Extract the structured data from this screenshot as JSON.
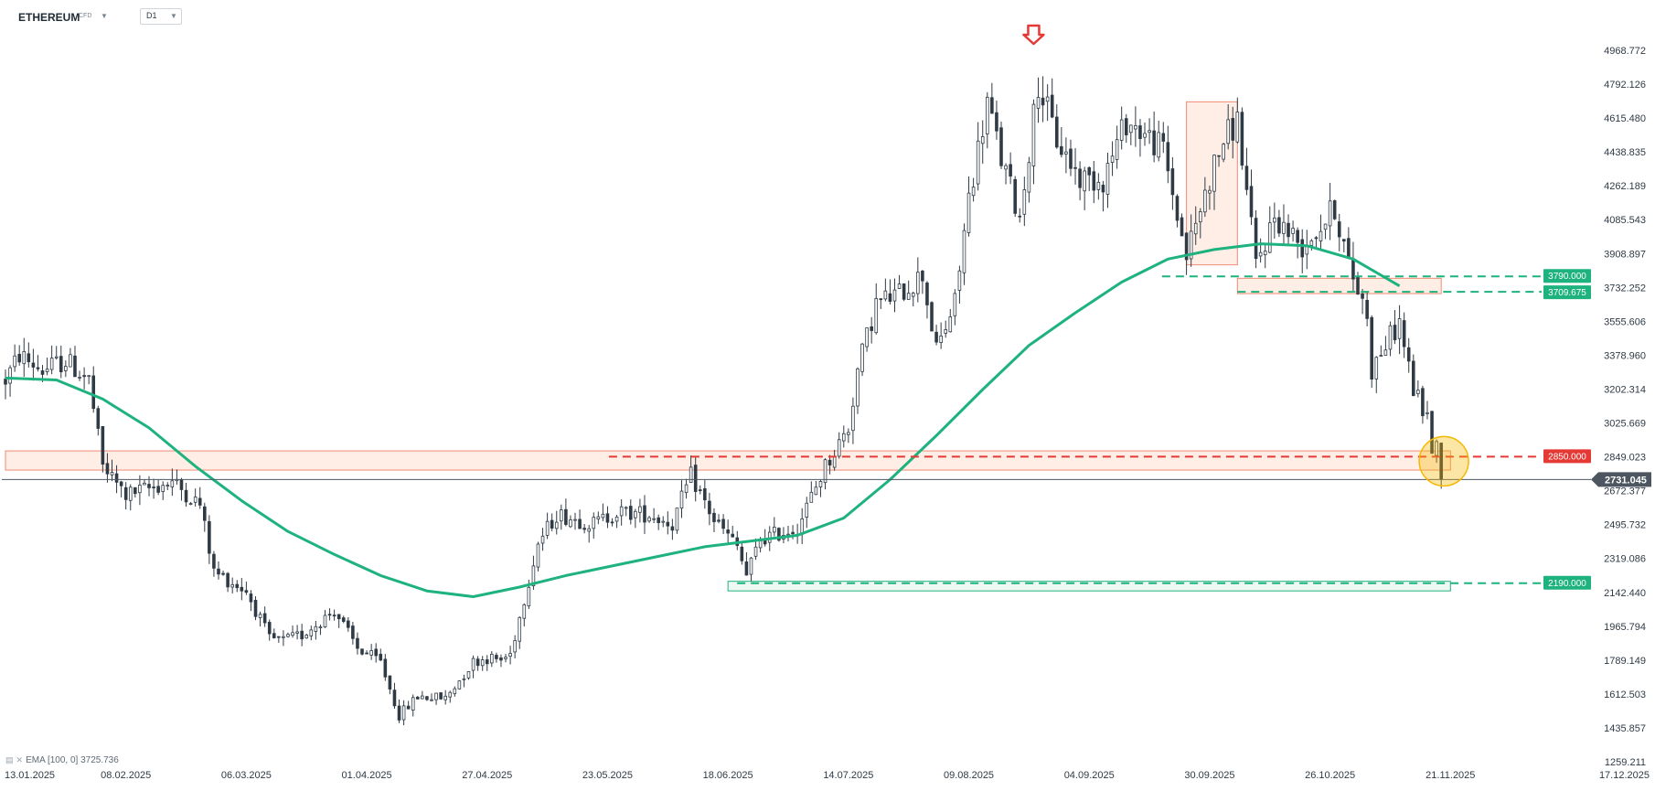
{
  "header": {
    "symbol": "ETHEREUM",
    "symbol_type": "CFD",
    "timeframe": "D1",
    "caret_icon": "caret-down-icon"
  },
  "indicator_legend": {
    "text": "EMA [100, 0] 3725.736",
    "icons": [
      "indicator-chart-icon",
      "close-icon"
    ]
  },
  "colors": {
    "up_candle": "#ffffff",
    "down_candle": "#2f3a45",
    "candle_outline": "#2f3a45",
    "ema": "#1db27e",
    "resistance": "#e53935",
    "support": "#1db27e",
    "zone_fill": "#fde8dc",
    "zone_border": "#f08a74",
    "current_price": "#4d5660",
    "highlight_circle": "#f5b800",
    "arrow": "#e53935"
  },
  "chart_data": {
    "type": "candlestick",
    "symbol": "ETHEREUM",
    "timeframe": "D1",
    "y_ticks": [
      "4968.772",
      "4792.126",
      "4615.480",
      "4438.835",
      "4262.189",
      "4085.543",
      "3908.897",
      "3732.252",
      "3555.606",
      "3378.960",
      "3202.314",
      "3025.669",
      "2849.023",
      "2672.377",
      "2495.732",
      "2319.086",
      "2142.440",
      "1965.794",
      "1789.149",
      "1612.503",
      "1435.857",
      "1259.211"
    ],
    "ylim": [
      1259.211,
      4968.772
    ],
    "x_ticks": [
      "13.01.2025",
      "08.02.2025",
      "06.03.2025",
      "01.04.2025",
      "27.04.2025",
      "23.05.2025",
      "18.06.2025",
      "14.07.2025",
      "09.08.2025",
      "04.09.2025",
      "30.09.2025",
      "26.10.2025",
      "21.11.2025",
      "17.12.2025"
    ],
    "price_anchors": [
      [
        "13.01.2025",
        3250
      ],
      [
        "16.01.2025",
        3380
      ],
      [
        "21.01.2025",
        3300
      ],
      [
        "26.01.2025",
        3350
      ],
      [
        "31.01.2025",
        3250
      ],
      [
        "03.02.2025",
        2800
      ],
      [
        "08.02.2025",
        2650
      ],
      [
        "18.02.2025",
        2720
      ],
      [
        "24.02.2025",
        2600
      ],
      [
        "27.02.2025",
        2250
      ],
      [
        "06.03.2025",
        2150
      ],
      [
        "11.03.2025",
        1900
      ],
      [
        "14.03.2025",
        1890
      ],
      [
        "18.03.2025",
        1920
      ],
      [
        "25.03.2025",
        2050
      ],
      [
        "30.03.2025",
        1850
      ],
      [
        "04.04.2025",
        1780
      ],
      [
        "08.04.2025",
        1500
      ],
      [
        "12.04.2025",
        1600
      ],
      [
        "18.04.2025",
        1590
      ],
      [
        "24.04.2025",
        1780
      ],
      [
        "27.04.2025",
        1800
      ],
      [
        "30.04.2025",
        1790
      ],
      [
        "02.05.2025",
        1820
      ],
      [
        "08.05.2025",
        2400
      ],
      [
        "12.05.2025",
        2550
      ],
      [
        "20.05.2025",
        2500
      ],
      [
        "25.05.2025",
        2560
      ],
      [
        "01.06.2025",
        2550
      ],
      [
        "06.06.2025",
        2500
      ],
      [
        "10.06.2025",
        2750
      ],
      [
        "15.06.2025",
        2520
      ],
      [
        "20.06.2025",
        2380
      ],
      [
        "22.06.2025",
        2230
      ],
      [
        "25.06.2025",
        2420
      ],
      [
        "03.07.2025",
        2480
      ],
      [
        "09.07.2025",
        2800
      ],
      [
        "14.07.2025",
        3000
      ],
      [
        "16.07.2025",
        3300
      ],
      [
        "20.07.2025",
        3650
      ],
      [
        "25.07.2025",
        3700
      ],
      [
        "30.07.2025",
        3800
      ],
      [
        "02.08.2025",
        3400
      ],
      [
        "06.08.2025",
        3650
      ],
      [
        "09.08.2025",
        4200
      ],
      [
        "13.08.2025",
        4700
      ],
      [
        "16.08.2025",
        4400
      ],
      [
        "20.08.2025",
        4100
      ],
      [
        "24.08.2025",
        4800
      ],
      [
        "28.08.2025",
        4500
      ],
      [
        "02.09.2025",
        4300
      ],
      [
        "07.09.2025",
        4300
      ],
      [
        "12.09.2025",
        4600
      ],
      [
        "15.09.2025",
        4550
      ],
      [
        "20.09.2025",
        4450
      ],
      [
        "24.09.2025",
        4000
      ],
      [
        "25.09.2025",
        3900
      ],
      [
        "30.09.2025",
        4300
      ],
      [
        "03.10.2025",
        4500
      ],
      [
        "06.10.2025",
        4600
      ],
      [
        "10.10.2025",
        3850
      ],
      [
        "14.10.2025",
        4100
      ],
      [
        "20.10.2025",
        3950
      ],
      [
        "24.10.2025",
        4050
      ],
      [
        "27.10.2025",
        4150
      ],
      [
        "30.10.2025",
        3850
      ],
      [
        "03.11.2025",
        3600
      ],
      [
        "04.11.2025",
        3300
      ],
      [
        "06.11.2025",
        3400
      ],
      [
        "10.11.2025",
        3550
      ],
      [
        "13.11.2025",
        3200
      ],
      [
        "16.11.2025",
        3050
      ],
      [
        "17.11.2025",
        2900
      ],
      [
        "18.11.2025",
        2900
      ],
      [
        "19.11.2025",
        2731
      ]
    ],
    "ema": {
      "name": "EMA [100, 0]",
      "last_value": 3725.736,
      "points": [
        [
          "13.01.2025",
          3260
        ],
        [
          "24.01.2025",
          3250
        ],
        [
          "03.02.2025",
          3150
        ],
        [
          "13.02.2025",
          3000
        ],
        [
          "23.02.2025",
          2800
        ],
        [
          "05.03.2025",
          2620
        ],
        [
          "15.03.2025",
          2460
        ],
        [
          "25.03.2025",
          2340
        ],
        [
          "04.04.2025",
          2230
        ],
        [
          "14.04.2025",
          2150
        ],
        [
          "24.04.2025",
          2120
        ],
        [
          "04.05.2025",
          2170
        ],
        [
          "14.05.2025",
          2230
        ],
        [
          "24.05.2025",
          2280
        ],
        [
          "03.06.2025",
          2330
        ],
        [
          "13.06.2025",
          2380
        ],
        [
          "23.06.2025",
          2410
        ],
        [
          "03.07.2025",
          2440
        ],
        [
          "13.07.2025",
          2530
        ],
        [
          "23.07.2025",
          2730
        ],
        [
          "02.08.2025",
          2960
        ],
        [
          "12.08.2025",
          3200
        ],
        [
          "22.08.2025",
          3430
        ],
        [
          "01.09.2025",
          3600
        ],
        [
          "11.09.2025",
          3760
        ],
        [
          "21.09.2025",
          3880
        ],
        [
          "01.10.2025",
          3930
        ],
        [
          "11.10.2025",
          3960
        ],
        [
          "21.10.2025",
          3950
        ],
        [
          "31.10.2025",
          3880
        ],
        [
          "10.11.2025",
          3740
        ]
      ]
    },
    "levels": [
      {
        "price": 3790.0,
        "label": "3790.000",
        "color": "#1db27e",
        "style": "dashed"
      },
      {
        "price": 3709.675,
        "label": "3709.675",
        "color": "#1db27e",
        "style": "dashed"
      },
      {
        "price": 2850.0,
        "label": "2850.000",
        "color": "#e53935",
        "style": "dashed"
      },
      {
        "price": 2190.0,
        "label": "2190.000",
        "color": "#1db27e",
        "style": "dashed"
      }
    ],
    "current_price": {
      "value": 2731.045,
      "label": "2731.045"
    },
    "zones": [
      {
        "name": "resistance-zone-2850",
        "from": "13.01.2025",
        "to": "21.11.2025",
        "low": 2780,
        "high": 2880,
        "color": "#fde8dc"
      },
      {
        "name": "zone-3720",
        "from": "06.10.2025",
        "to": "19.11.2025",
        "low": 3700,
        "high": 3780,
        "color": "#fde8dc"
      },
      {
        "name": "breakout-zone",
        "from": "25.09.2025",
        "to": "06.10.2025",
        "low": 3850,
        "high": 4700,
        "color": "#fde8dc"
      },
      {
        "name": "support-zone-2190",
        "from": "18.06.2025",
        "to": "21.11.2025",
        "low": 2150,
        "high": 2200,
        "color": "#e8f7f0"
      }
    ],
    "markers": [
      {
        "name": "top-arrow",
        "date": "23.08.2025",
        "price": 4968.772
      },
      {
        "name": "current-circle",
        "date": "18.11.2025",
        "price": 2850
      }
    ],
    "grid": false,
    "legend": "bottom-left"
  }
}
